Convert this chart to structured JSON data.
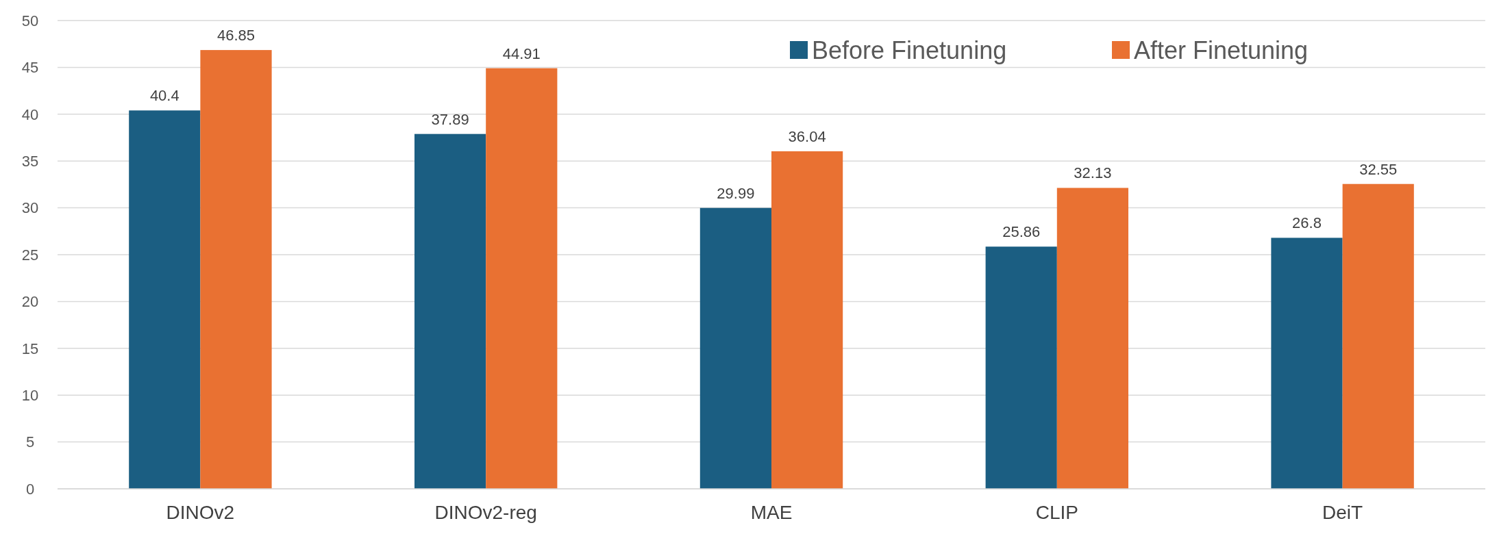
{
  "chart_data": {
    "type": "bar",
    "categories": [
      "DINOv2",
      "DINOv2-reg",
      "MAE",
      "CLIP",
      "DeiT"
    ],
    "series": [
      {
        "name": "Before Finetuning",
        "color": "#1b5e82",
        "values": [
          40.4,
          37.89,
          29.99,
          25.86,
          26.8
        ]
      },
      {
        "name": "After Finetuning",
        "color": "#e97132",
        "values": [
          46.85,
          44.91,
          36.04,
          32.13,
          32.55
        ]
      }
    ],
    "ylim": [
      0,
      50
    ],
    "yticks": [
      0,
      5,
      10,
      15,
      20,
      25,
      30,
      35,
      40,
      45,
      50
    ],
    "grid": "y",
    "legend": "top right",
    "data_labels": true
  }
}
